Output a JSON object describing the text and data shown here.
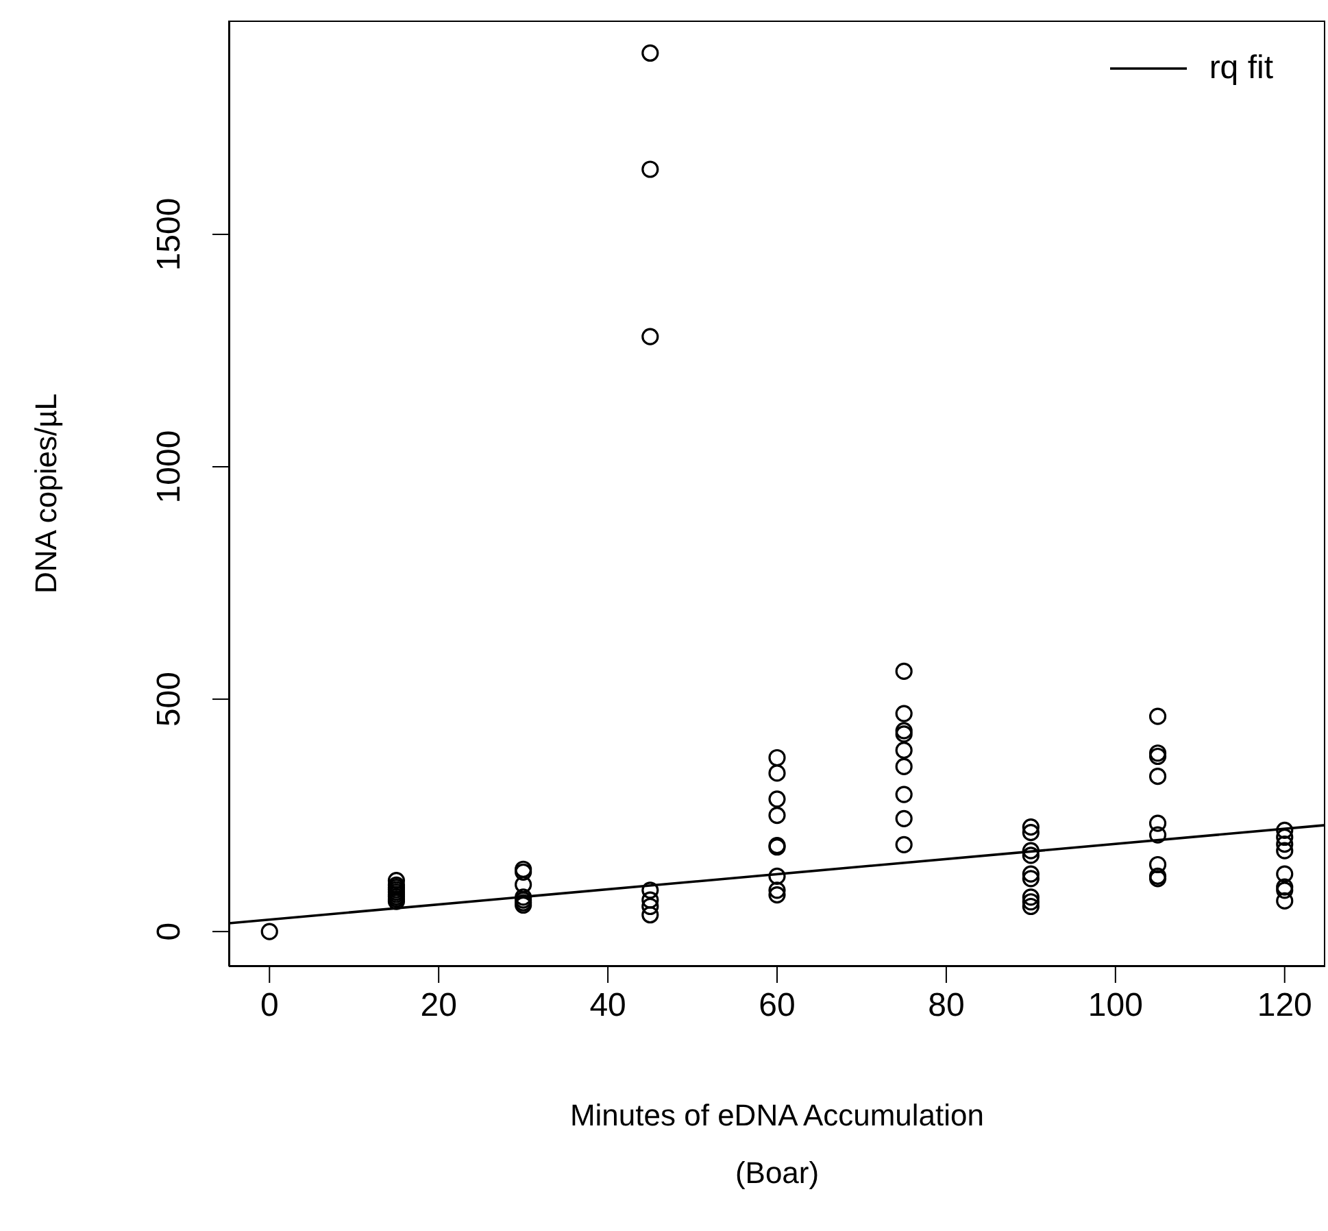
{
  "chart_data": {
    "type": "scatter",
    "xlabel": "Minutes of eDNA Accumulation\n(Boar)",
    "ylabel": "DNA copies/µL",
    "xlim": [
      -4.8,
      124.8
    ],
    "xticks": [
      0,
      20,
      40,
      60,
      80,
      100,
      120
    ],
    "ylim": [
      -75,
      1960
    ],
    "yticks": [
      0,
      500,
      1000,
      1500
    ],
    "legend": "top right",
    "marker": "circle",
    "series": [
      {
        "color": "#000000",
        "x": [
          0,
          15,
          15,
          15,
          15,
          15,
          15,
          15,
          15,
          15,
          30,
          30,
          30,
          30,
          30,
          30,
          30,
          45,
          45,
          45,
          45,
          45,
          45,
          45,
          60,
          60,
          60,
          60,
          60,
          60,
          60,
          60,
          60,
          75,
          75,
          75,
          75,
          75,
          75,
          75,
          75,
          75,
          90,
          90,
          90,
          90,
          90,
          90,
          90,
          90,
          90,
          105,
          105,
          105,
          105,
          105,
          105,
          105,
          105,
          105,
          120,
          120,
          120,
          120,
          120,
          120,
          120,
          120
        ],
        "values": [
          0,
          110,
          100,
          95,
          90,
          85,
          80,
          75,
          70,
          65,
          134,
          128,
          101,
          74,
          68,
          62,
          57,
          1890,
          1640,
          1280,
          89,
          68,
          54,
          36,
          374,
          341,
          285,
          250,
          185,
          182,
          119,
          89,
          79,
          560,
          469,
          432,
          425,
          390,
          355,
          295,
          243,
          187,
          225,
          213,
          174,
          164,
          124,
          114,
          74,
          64,
          54,
          463,
          384,
          377,
          334,
          233,
          208,
          144,
          119,
          114,
          218,
          203,
          188,
          174,
          124,
          96,
          89,
          66
        ]
      },
      {
        "type": "line",
        "name": "rq fit",
        "color": "#000000",
        "marker": "none",
        "line_style": "solid",
        "x": [
          -4.8,
          124.8
        ],
        "values": [
          18,
          229
        ]
      }
    ]
  }
}
